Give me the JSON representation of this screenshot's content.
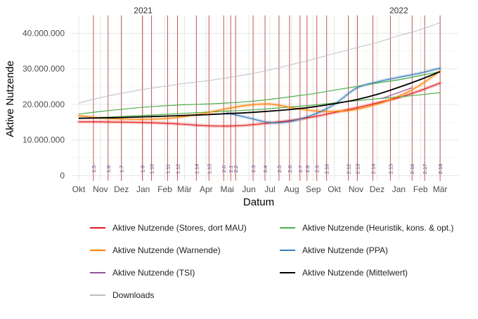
{
  "chart_data": {
    "type": "line",
    "title": "",
    "xlabel": "Datum",
    "ylabel": "Aktive Nutzende",
    "year_labels": [
      {
        "label": "2021",
        "x": "2021-01-01"
      },
      {
        "label": "2022",
        "x": "2022-01-01"
      }
    ],
    "x_range": [
      "2020-09-21",
      "2022-03-27"
    ],
    "x_ticks": [
      {
        "label": "Okt",
        "x": "2020-10-01"
      },
      {
        "label": "Nov",
        "x": "2020-11-01"
      },
      {
        "label": "Dez",
        "x": "2020-12-01"
      },
      {
        "label": "Jan",
        "x": "2021-01-01"
      },
      {
        "label": "Feb",
        "x": "2021-02-01"
      },
      {
        "label": "Mär",
        "x": "2021-03-01"
      },
      {
        "label": "Apr",
        "x": "2021-04-01"
      },
      {
        "label": "Mai",
        "x": "2021-05-01"
      },
      {
        "label": "Jun",
        "x": "2021-06-01"
      },
      {
        "label": "Jul",
        "x": "2021-07-01"
      },
      {
        "label": "Aug",
        "x": "2021-08-01"
      },
      {
        "label": "Sep",
        "x": "2021-09-01"
      },
      {
        "label": "Okt",
        "x": "2021-10-01"
      },
      {
        "label": "Nov",
        "x": "2021-11-01"
      },
      {
        "label": "Dez",
        "x": "2021-12-01"
      },
      {
        "label": "Jan",
        "x": "2022-01-01"
      },
      {
        "label": "Feb",
        "x": "2022-02-01"
      },
      {
        "label": "Mär",
        "x": "2022-03-01"
      }
    ],
    "ylim": [
      -1500000,
      45000000
    ],
    "y_ticks": [
      {
        "label": "0",
        "y": 0
      },
      {
        "label": "10.000.000",
        "y": 10000000
      },
      {
        "label": "20.000.000",
        "y": 20000000
      },
      {
        "label": "30.000.000",
        "y": 30000000
      },
      {
        "label": "40.000.000",
        "y": 40000000
      }
    ],
    "grid": true,
    "legend_position": "bottom",
    "version_lines": [
      {
        "label": "1.5",
        "x": "2020-10-22"
      },
      {
        "label": "1.6",
        "x": "2020-11-12"
      },
      {
        "label": "1.7",
        "x": "2020-12-01"
      },
      {
        "label": "1.9",
        "x": "2020-12-31"
      },
      {
        "label": "1.10",
        "x": "2021-01-13"
      },
      {
        "label": "1.11",
        "x": "2021-02-05"
      },
      {
        "label": "1.12",
        "x": "2021-02-19"
      },
      {
        "label": "1.14",
        "x": "2021-03-18"
      },
      {
        "label": "1.15",
        "x": "2021-04-05"
      },
      {
        "label": "2.0",
        "x": "2021-04-26"
      },
      {
        "label": "2.1",
        "x": "2021-05-06"
      },
      {
        "label": "2.2",
        "x": "2021-05-13"
      },
      {
        "label": "2.3",
        "x": "2021-06-07"
      },
      {
        "label": "2.4",
        "x": "2021-06-24"
      },
      {
        "label": "2.5",
        "x": "2021-07-14"
      },
      {
        "label": "2.6",
        "x": "2021-07-29"
      },
      {
        "label": "2.7",
        "x": "2021-08-13"
      },
      {
        "label": "2.8",
        "x": "2021-08-23"
      },
      {
        "label": "2.9",
        "x": "2021-09-06"
      },
      {
        "label": "2.10",
        "x": "2021-09-20"
      },
      {
        "label": "2.12",
        "x": "2021-10-21"
      },
      {
        "label": "2.13",
        "x": "2021-11-03"
      },
      {
        "label": "2.14",
        "x": "2021-11-25"
      },
      {
        "label": "2.15",
        "x": "2021-12-20"
      },
      {
        "label": "2.16",
        "x": "2022-01-20"
      },
      {
        "label": "2.17",
        "x": "2022-02-07"
      },
      {
        "label": "2.18",
        "x": "2022-03-01"
      }
    ],
    "series": [
      {
        "name": "Aktive Nutzende (Stores, dort MAU)",
        "color": "#e41a1c",
        "band": true,
        "x": [
          "2020-10-01",
          "2020-11-01",
          "2020-12-01",
          "2021-01-01",
          "2021-02-01",
          "2021-03-01",
          "2021-04-01",
          "2021-05-01",
          "2021-06-01",
          "2021-07-01",
          "2021-08-01",
          "2021-09-01",
          "2021-10-01",
          "2021-11-01",
          "2021-12-01",
          "2022-01-01",
          "2022-02-01",
          "2022-03-01"
        ],
        "values": [
          15100000,
          15100000,
          15000000,
          14900000,
          14700000,
          14400000,
          14000000,
          13900000,
          14200000,
          14800000,
          15500000,
          16500000,
          17700000,
          19000000,
          20400000,
          21900000,
          23900000,
          26000000
        ]
      },
      {
        "name": "Aktive Nutzende (Heuristik, kons. & opt.)",
        "color": "#4daf4a",
        "band": false,
        "x": [
          "2020-10-01",
          "2020-11-01",
          "2020-12-01",
          "2021-01-01",
          "2021-02-01",
          "2021-03-01",
          "2021-04-01",
          "2021-05-01",
          "2021-06-01",
          "2021-07-01",
          "2021-08-01",
          "2021-09-01",
          "2021-10-01",
          "2021-11-01",
          "2021-12-01",
          "2022-01-01",
          "2022-02-01",
          "2022-03-01"
        ],
        "values": [
          17300000,
          18000000,
          18600000,
          19200000,
          19600000,
          19900000,
          20100000,
          20400000,
          20800000,
          21400000,
          22200000,
          23000000,
          24000000,
          25000000,
          26000000,
          26900000,
          28100000,
          29200000
        ]
      },
      {
        "name": "Aktive Nutzende (Heuristik, kons. & opt.)",
        "color": "#4daf4a",
        "band": false,
        "x": [
          "2020-10-01",
          "2020-11-01",
          "2020-12-01",
          "2021-01-01",
          "2021-02-01",
          "2021-03-01",
          "2021-04-01",
          "2021-05-01",
          "2021-06-01",
          "2021-07-01",
          "2021-08-01",
          "2021-09-01",
          "2021-10-01",
          "2021-11-01",
          "2021-12-01",
          "2022-01-01",
          "2022-02-01",
          "2022-03-01"
        ],
        "values": [
          16000000,
          16300000,
          16600000,
          16900000,
          17200000,
          17500000,
          17800000,
          18100000,
          18400000,
          18800000,
          19300000,
          19800000,
          20400000,
          21000000,
          21600000,
          22100000,
          22700000,
          23300000
        ]
      },
      {
        "name": "Aktive Nutzende (Warnende)",
        "color": "#ff7f00",
        "band": true,
        "x": [
          "2020-10-01",
          "2020-11-01",
          "2020-12-01",
          "2021-01-01",
          "2021-02-01",
          "2021-03-01",
          "2021-04-01",
          "2021-05-01",
          "2021-06-01",
          "2021-07-01",
          "2021-08-01",
          "2021-09-01",
          "2021-10-01",
          "2021-11-01",
          "2021-12-01",
          "2022-01-01",
          "2022-02-01",
          "2022-03-01"
        ],
        "values": [
          16800000,
          16200000,
          15900000,
          15800000,
          16000000,
          16600000,
          17600000,
          18800000,
          19800000,
          20100000,
          19100000,
          18200000,
          18000000,
          18600000,
          20100000,
          22300000,
          25500000,
          29400000
        ]
      },
      {
        "name": "Aktive Nutzende (PPA)",
        "color": "#377eb8",
        "band": true,
        "x": [
          "2021-05-01",
          "2021-06-01",
          "2021-07-01",
          "2021-08-01",
          "2021-09-01",
          "2021-10-01",
          "2021-11-01",
          "2021-12-01",
          "2022-01-01",
          "2022-02-01",
          "2022-03-01"
        ],
        "values": [
          17600000,
          16200000,
          14900000,
          15300000,
          17100000,
          20000000,
          24500000,
          26300000,
          27600000,
          28800000,
          30200000
        ]
      },
      {
        "name": "Aktive Nutzende (TSI)",
        "color": "#984ea3",
        "band": false,
        "x": [
          "2021-12-07",
          "2022-01-20"
        ],
        "values": [
          21600000,
          24700000
        ]
      },
      {
        "name": "Aktive Nutzende (Mittelwert)",
        "color": "#000000",
        "band": false,
        "x": [
          "2020-10-01",
          "2020-11-01",
          "2020-12-01",
          "2021-01-01",
          "2021-02-01",
          "2021-03-01",
          "2021-04-01",
          "2021-05-01",
          "2021-06-01",
          "2021-07-01",
          "2021-08-01",
          "2021-09-01",
          "2021-10-01",
          "2021-11-01",
          "2021-12-01",
          "2022-01-01",
          "2022-02-01",
          "2022-03-01"
        ],
        "values": [
          16100000,
          16200000,
          16300000,
          16500000,
          16700000,
          16900000,
          17100000,
          17400000,
          17700000,
          18100000,
          18600000,
          19300000,
          20200000,
          21300000,
          22800000,
          24800000,
          27000000,
          29200000
        ]
      },
      {
        "name": "Downloads",
        "color": "#bdbdbd",
        "band": false,
        "x": [
          "2020-10-01",
          "2020-11-01",
          "2020-12-01",
          "2021-01-01",
          "2021-02-01",
          "2021-03-01",
          "2021-04-01",
          "2021-05-01",
          "2021-06-01",
          "2021-07-01",
          "2021-08-01",
          "2021-09-01",
          "2021-10-01",
          "2021-11-01",
          "2021-12-01",
          "2022-01-01",
          "2022-02-01",
          "2022-03-01"
        ],
        "values": [
          20400000,
          21900000,
          23100000,
          24200000,
          25100000,
          25900000,
          26600000,
          27500000,
          28500000,
          29700000,
          31200000,
          32700000,
          34300000,
          35900000,
          37400000,
          39300000,
          41000000,
          43000000
        ]
      }
    ],
    "legend": [
      {
        "label": "Aktive Nutzende (Stores, dort MAU)",
        "color": "#e41a1c"
      },
      {
        "label": "Aktive Nutzende (Heuristik, kons. & opt.)",
        "color": "#4daf4a"
      },
      {
        "label": "Aktive Nutzende (Warnende)",
        "color": "#ff7f00"
      },
      {
        "label": "Aktive Nutzende (PPA)",
        "color": "#377eb8"
      },
      {
        "label": "Aktive Nutzende (TSI)",
        "color": "#984ea3"
      },
      {
        "label": "Aktive Nutzende (Mittelwert)",
        "color": "#000000"
      },
      {
        "label": "Downloads",
        "color": "#bdbdbd"
      }
    ]
  }
}
